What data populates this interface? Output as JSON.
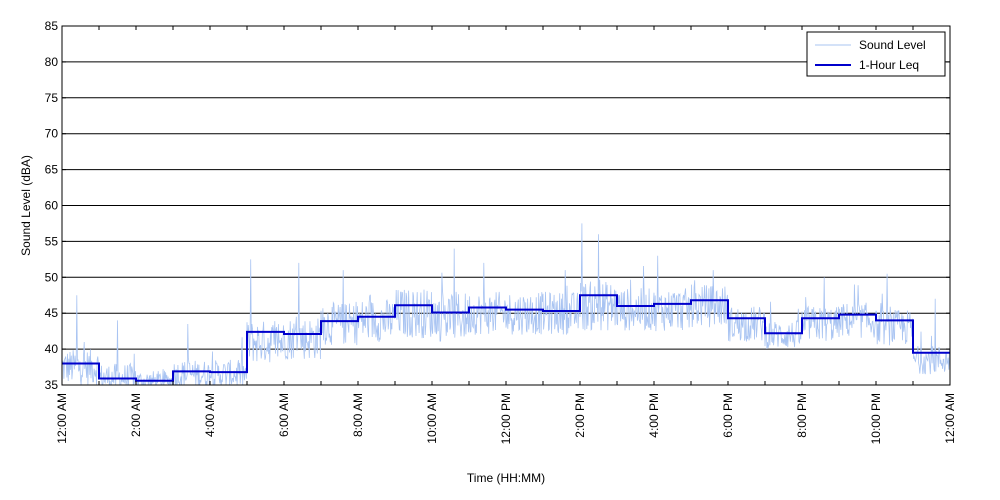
{
  "chart_data": {
    "type": "line",
    "title": "",
    "xlabel": "Time (HH:MM)",
    "ylabel": "Sound Level (dBA)",
    "ylim": [
      35,
      85
    ],
    "xlim": [
      0,
      24
    ],
    "yticks": [
      "35",
      "40",
      "45",
      "50",
      "55",
      "60",
      "65",
      "70",
      "75",
      "80",
      "85"
    ],
    "xticks": [
      {
        "hour": 0,
        "label": "12:00 AM"
      },
      {
        "hour": 2,
        "label": "2:00 AM"
      },
      {
        "hour": 4,
        "label": "4:00 AM"
      },
      {
        "hour": 6,
        "label": "6:00 AM"
      },
      {
        "hour": 8,
        "label": "8:00 AM"
      },
      {
        "hour": 10,
        "label": "10:00 AM"
      },
      {
        "hour": 12,
        "label": "12:00 PM"
      },
      {
        "hour": 14,
        "label": "2:00 PM"
      },
      {
        "hour": 16,
        "label": "4:00 PM"
      },
      {
        "hour": 18,
        "label": "6:00 PM"
      },
      {
        "hour": 20,
        "label": "8:00 PM"
      },
      {
        "hour": 22,
        "label": "10:00 PM"
      },
      {
        "hour": 24,
        "label": "12:00 AM"
      }
    ],
    "grid": "horizontal",
    "legend_position": "top-right",
    "series": [
      {
        "name": "Sound Level",
        "color": "#a9c4f2",
        "style": "thin-line",
        "hour_range": [
          0,
          24
        ],
        "samples_per_hour": 60,
        "hourly_typical": [
          37.5,
          36,
          35.5,
          36.5,
          36.5,
          41,
          41.5,
          43.5,
          44,
          45,
          44.5,
          45,
          45,
          45,
          46,
          45.5,
          45.5,
          46,
          43.5,
          42,
          43.5,
          44,
          43,
          38.5
        ],
        "hourly_spread": [
          2.5,
          2,
          1.5,
          2,
          2,
          3,
          3,
          3,
          3,
          3.5,
          3.5,
          3,
          3,
          3,
          3.5,
          3,
          3,
          3,
          2.5,
          2,
          2.5,
          2.5,
          2.5,
          2
        ],
        "peaks": [
          {
            "hour": 0.4,
            "value": 47.5
          },
          {
            "hour": 1.5,
            "value": 44
          },
          {
            "hour": 3.4,
            "value": 43.5
          },
          {
            "hour": 5.1,
            "value": 52.5
          },
          {
            "hour": 6.4,
            "value": 52
          },
          {
            "hour": 7.6,
            "value": 51
          },
          {
            "hour": 10.6,
            "value": 54
          },
          {
            "hour": 11.4,
            "value": 52
          },
          {
            "hour": 13.6,
            "value": 51
          },
          {
            "hour": 14.05,
            "value": 57.5
          },
          {
            "hour": 14.5,
            "value": 56
          },
          {
            "hour": 16.1,
            "value": 53
          },
          {
            "hour": 17.6,
            "value": 51
          },
          {
            "hour": 20.6,
            "value": 50
          },
          {
            "hour": 22.3,
            "value": 50.5
          },
          {
            "hour": 23.6,
            "value": 47
          }
        ]
      },
      {
        "name": "1-Hour Leq",
        "color": "#0000cc",
        "style": "step",
        "hours": [
          0,
          1,
          2,
          3,
          4,
          5,
          6,
          7,
          8,
          9,
          10,
          11,
          12,
          13,
          14,
          15,
          16,
          17,
          18,
          19,
          20,
          21,
          22,
          23
        ],
        "values": [
          38,
          35.9,
          35.6,
          36.9,
          36.8,
          42.4,
          42.1,
          43.9,
          44.5,
          46.1,
          45.1,
          45.8,
          45.5,
          45.3,
          47.5,
          46,
          46.3,
          46.8,
          44.3,
          42.2,
          44.3,
          44.8,
          44,
          39.5
        ]
      }
    ]
  }
}
